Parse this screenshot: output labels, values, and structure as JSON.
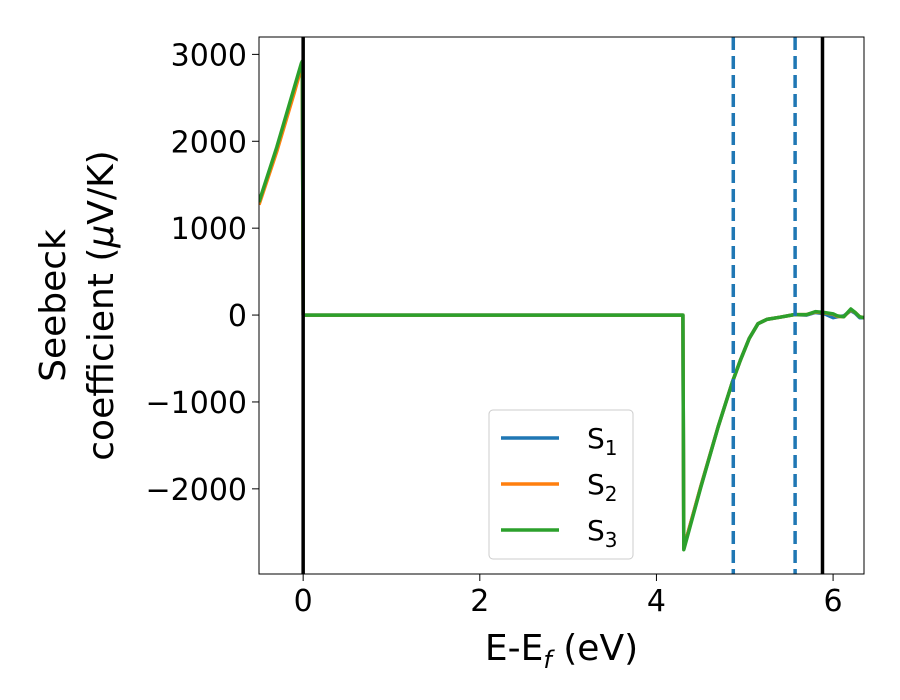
{
  "chart_data": {
    "type": "line",
    "title": "",
    "xlabel": {
      "main": "E-E",
      "sub": "f",
      "suffix": " (eV)"
    },
    "ylabel": {
      "line1": "Seebeck",
      "line2_main": "coefficient  (",
      "line2_mu": "μ",
      "line2_suffix": "V/K)"
    },
    "xlim": [
      -0.5,
      6.35
    ],
    "ylim": [
      -2980,
      3200
    ],
    "xticks": [
      0,
      2,
      4,
      6
    ],
    "xtick_labels": [
      "0",
      "2",
      "4",
      "6"
    ],
    "yticks": [
      3000,
      2000,
      1000,
      0,
      -1000,
      -2000
    ],
    "ytick_labels": [
      "3000",
      "2000",
      "1000",
      "0",
      "−1000",
      "−2000"
    ],
    "grid": false,
    "legend_position": "lower-center",
    "series": [
      {
        "name": "S1",
        "label_main": "S",
        "label_sub": "1",
        "color": "#1f77b4",
        "x": [
          -0.5,
          -0.3,
          -0.1,
          -0.02,
          -0.01,
          0.0,
          1.0,
          2.0,
          3.0,
          4.0,
          4.3,
          4.31,
          4.5,
          4.7,
          4.86,
          4.95,
          5.05,
          5.15,
          5.25,
          5.4,
          5.56,
          5.7,
          5.8,
          5.9,
          6.0,
          6.05,
          6.12,
          6.2,
          6.25,
          6.3,
          6.35
        ],
        "y": [
          1290,
          1910,
          2600,
          2880,
          2900,
          0,
          0,
          0,
          0,
          0,
          0,
          -2680,
          -1980,
          -1280,
          -770,
          -520,
          -270,
          -100,
          -50,
          -25,
          5,
          0,
          30,
          15,
          -30,
          -20,
          -10,
          50,
          20,
          -30,
          -30
        ]
      },
      {
        "name": "S2",
        "label_main": "S",
        "label_sub": "2",
        "color": "#ff7f0e",
        "x": [
          -0.5,
          -0.3,
          -0.1,
          -0.02,
          -0.01,
          0.0,
          1.0,
          2.0,
          3.0,
          4.0,
          4.3,
          4.31,
          4.5,
          4.7,
          4.86,
          4.95,
          5.05,
          5.15,
          5.25,
          5.4,
          5.56,
          5.7,
          5.8,
          5.9,
          6.0,
          6.05,
          6.12,
          6.2,
          6.25,
          6.3,
          6.35
        ],
        "y": [
          1270,
          1880,
          2560,
          2850,
          2880,
          0,
          0,
          0,
          0,
          0,
          0,
          -2680,
          -1980,
          -1280,
          -770,
          -520,
          -270,
          -100,
          -50,
          -25,
          5,
          5,
          35,
          25,
          10,
          -15,
          -20,
          60,
          30,
          -20,
          -30
        ]
      },
      {
        "name": "S3",
        "label_main": "S",
        "label_sub": "3",
        "color": "#2ca02c",
        "x": [
          -0.5,
          -0.3,
          -0.1,
          -0.02,
          -0.01,
          0.0,
          1.0,
          2.0,
          3.0,
          4.0,
          4.3,
          4.31,
          4.5,
          4.7,
          4.86,
          4.95,
          5.05,
          5.15,
          5.25,
          5.4,
          5.56,
          5.7,
          5.8,
          5.9,
          6.0,
          6.05,
          6.12,
          6.2,
          6.25,
          6.3,
          6.35
        ],
        "y": [
          1300,
          1930,
          2620,
          2900,
          2920,
          0,
          0,
          0,
          0,
          0,
          0,
          -2700,
          -1990,
          -1280,
          -770,
          -520,
          -270,
          -100,
          -50,
          -25,
          5,
          5,
          40,
          30,
          15,
          -10,
          -20,
          70,
          30,
          -20,
          -30
        ]
      }
    ],
    "vlines": [
      {
        "x": 0.0,
        "style": "solid",
        "color": "#000000"
      },
      {
        "x": 5.88,
        "style": "solid",
        "color": "#000000"
      },
      {
        "x": 4.87,
        "style": "dashed",
        "color": "#1f77b4"
      },
      {
        "x": 5.57,
        "style": "dashed",
        "color": "#1f77b4"
      }
    ]
  }
}
